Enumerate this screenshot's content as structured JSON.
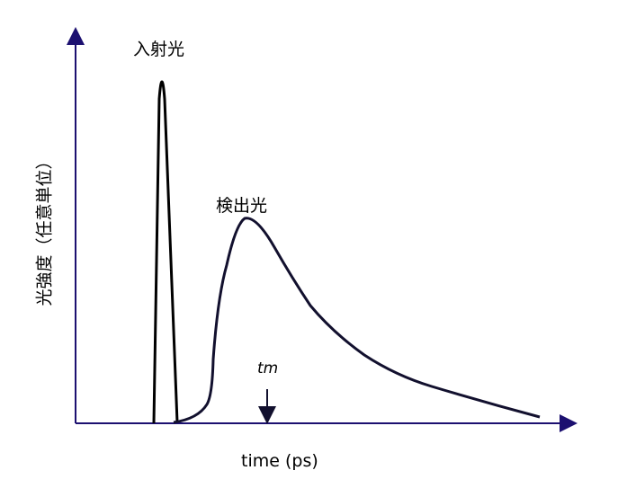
{
  "labels": {
    "incident_light": "入射光",
    "detected_light": "検出光",
    "tm": "tm",
    "x_axis": "time (ps)",
    "y_axis": "光強度（任意単位）"
  },
  "colors": {
    "axis": "#1c1070",
    "incident_curve": "#000000",
    "detected_curve": "#12102e"
  }
}
